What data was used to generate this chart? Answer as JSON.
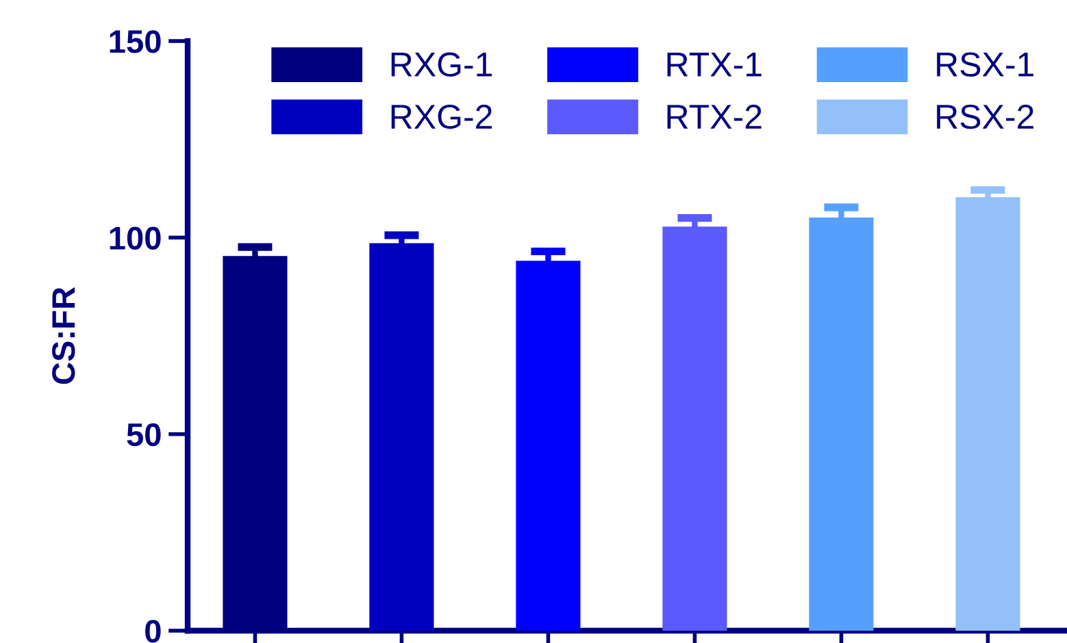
{
  "chart_data": {
    "type": "bar",
    "ylabel": "CS:FR",
    "categories": [
      null,
      null,
      null,
      null,
      null,
      null
    ],
    "series": [
      {
        "name": "RXG-1",
        "color": "#000080",
        "values": [
          95.3,
          null,
          null,
          null,
          null,
          null
        ],
        "errors": [
          2.3,
          null,
          null,
          null,
          null,
          null
        ]
      },
      {
        "name": "RXG-2",
        "color": "#0000c0",
        "values": [
          null,
          98.6,
          null,
          null,
          null,
          null
        ],
        "errors": [
          null,
          2,
          null,
          null,
          null,
          null
        ]
      },
      {
        "name": "RTX-1",
        "color": "#0000ff",
        "values": [
          null,
          null,
          94.1,
          null,
          null,
          null
        ],
        "errors": [
          null,
          null,
          2.4,
          null,
          null,
          null
        ]
      },
      {
        "name": "RTX-2",
        "color": "#5a5aff",
        "values": [
          null,
          null,
          null,
          102.8,
          null,
          null
        ],
        "errors": [
          null,
          null,
          null,
          2.2,
          null,
          null
        ]
      },
      {
        "name": "RSX-1",
        "color": "#55a0ff",
        "values": [
          null,
          null,
          null,
          null,
          105.1,
          null
        ],
        "errors": [
          null,
          null,
          null,
          null,
          2.6,
          null
        ]
      },
      {
        "name": "RSX-2",
        "color": "#94c0fa",
        "values": [
          null,
          null,
          null,
          null,
          null,
          110.3
        ],
        "errors": [
          null,
          null,
          null,
          null,
          null,
          1.8
        ]
      }
    ],
    "ylim": [
      0,
      150
    ],
    "yticks": [
      0,
      50,
      100,
      150
    ],
    "grid": false,
    "legend": "top",
    "tick_labels": "y"
  }
}
